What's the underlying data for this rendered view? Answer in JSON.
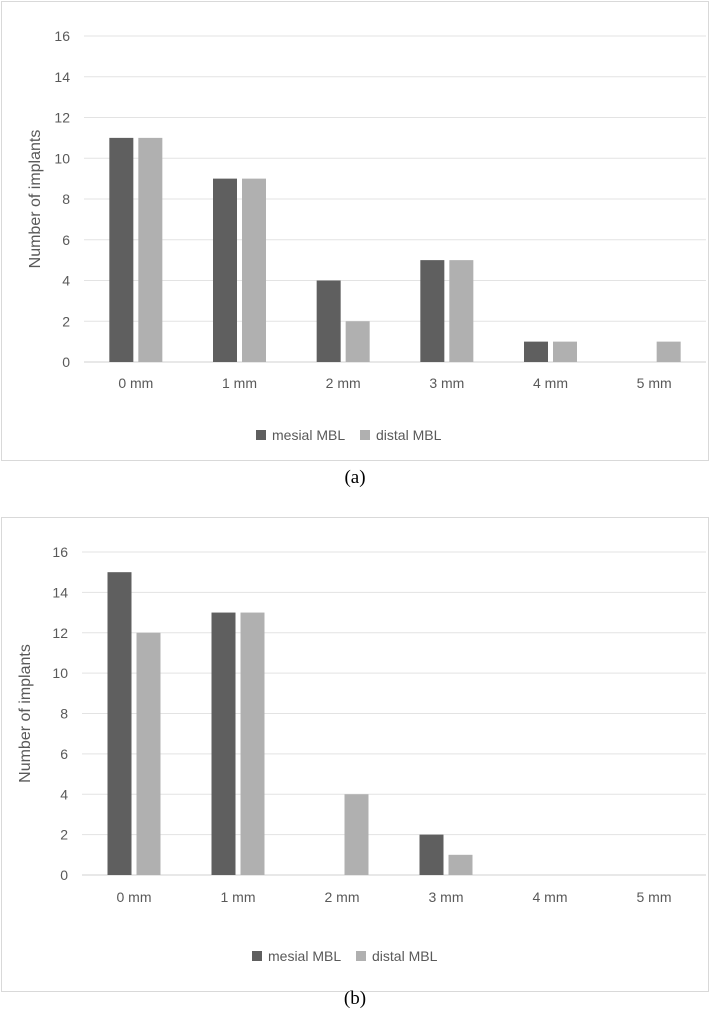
{
  "chart_data": [
    {
      "type": "bar",
      "categories": [
        "0 mm",
        "1 mm",
        "2 mm",
        "3 mm",
        "4 mm",
        "5 mm"
      ],
      "series": [
        {
          "name": "mesial MBL",
          "values": [
            11,
            9,
            4,
            5,
            1,
            0
          ],
          "color": "#5f5f5f"
        },
        {
          "name": "distal MBL",
          "values": [
            11,
            9,
            2,
            5,
            1,
            1
          ],
          "color": "#b0b0b0"
        }
      ],
      "title": "",
      "xlabel": "",
      "ylabel": "Number of implants",
      "ylim": [
        0,
        16
      ],
      "yticks": [
        0,
        2,
        4,
        6,
        8,
        10,
        12,
        14,
        16
      ],
      "grid": true,
      "legend": "bottom",
      "caption": "(a)"
    },
    {
      "type": "bar",
      "categories": [
        "0 mm",
        "1 mm",
        "2 mm",
        "3 mm",
        "4 mm",
        "5 mm"
      ],
      "series": [
        {
          "name": "mesial MBL",
          "values": [
            15,
            13,
            0,
            2,
            0,
            0
          ],
          "color": "#5f5f5f"
        },
        {
          "name": "distal MBL",
          "values": [
            12,
            13,
            4,
            1,
            0,
            0
          ],
          "color": "#b0b0b0"
        }
      ],
      "title": "",
      "xlabel": "",
      "ylabel": "Number of implants",
      "ylim": [
        0,
        16
      ],
      "yticks": [
        0,
        2,
        4,
        6,
        8,
        10,
        12,
        14,
        16
      ],
      "grid": true,
      "legend": "bottom",
      "caption": "(b)"
    }
  ]
}
